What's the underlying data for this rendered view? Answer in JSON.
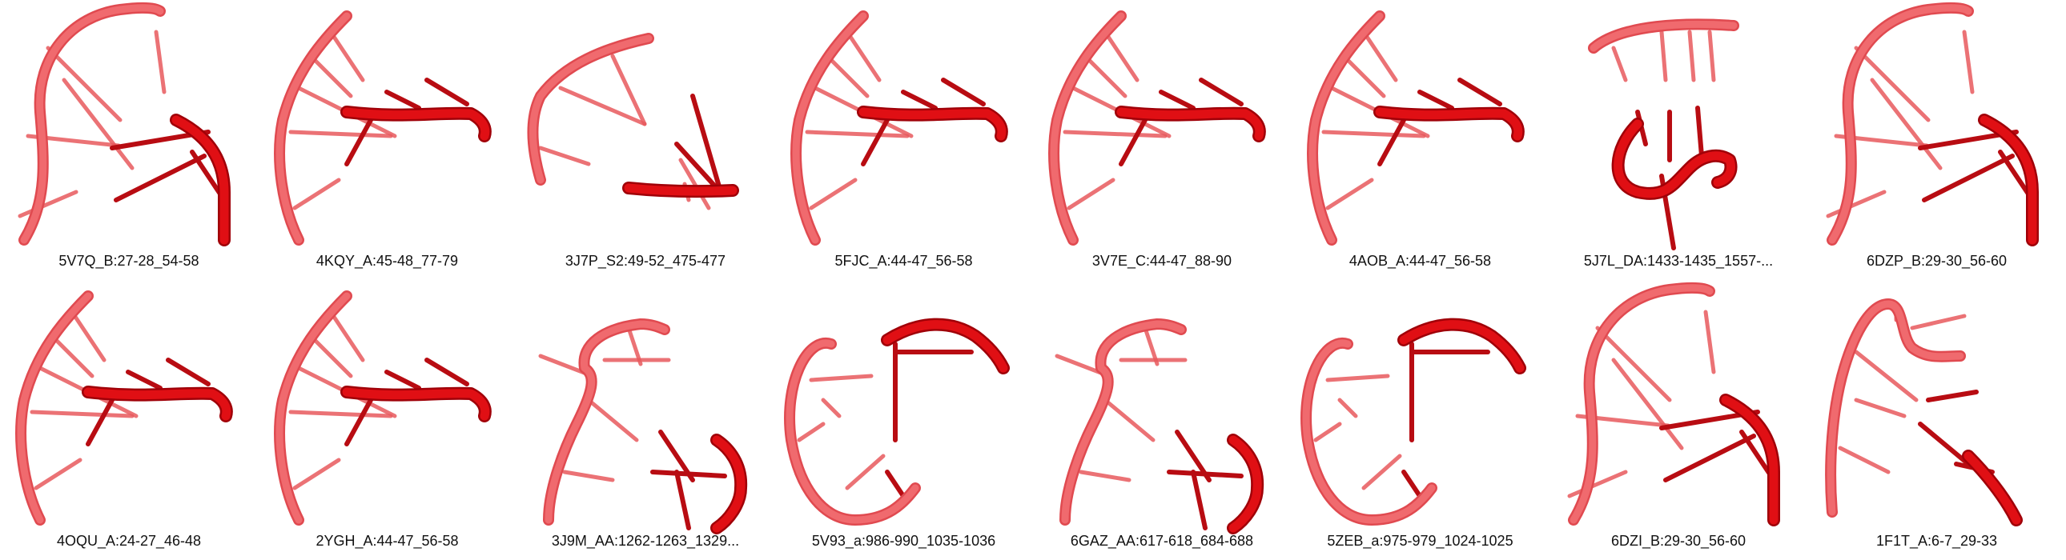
{
  "colors": {
    "light_strand": "#f06a6e",
    "light_strand_edge": "#e04a50",
    "dark_strand": "#e00f14",
    "dark_strand_edge": "#a00008",
    "rung_light": "#e85a5e",
    "rung_dark": "#b80c12"
  },
  "structures": [
    {
      "label": "5V7Q_B:27-28_54-58",
      "shape": "a"
    },
    {
      "label": "4KQY_A:45-48_77-79",
      "shape": "b"
    },
    {
      "label": "3J7P_S2:49-52_475-477",
      "shape": "c"
    },
    {
      "label": "5FJC_A:44-47_56-58",
      "shape": "b"
    },
    {
      "label": "3V7E_C:44-47_88-90",
      "shape": "b"
    },
    {
      "label": "4AOB_A:44-47_56-58",
      "shape": "b"
    },
    {
      "label": "5J7L_DA:1433-1435_1557-...",
      "shape": "d"
    },
    {
      "label": "6DZP_B:29-30_56-60",
      "shape": "a"
    },
    {
      "label": "4OQU_A:24-27_46-48",
      "shape": "b"
    },
    {
      "label": "2YGH_A:44-47_56-58",
      "shape": "b"
    },
    {
      "label": "3J9M_AA:1262-1263_1329...",
      "shape": "e"
    },
    {
      "label": "5V93_a:986-990_1035-1036",
      "shape": "f"
    },
    {
      "label": "6GAZ_AA:617-618_684-688",
      "shape": "e"
    },
    {
      "label": "5ZEB_a:975-979_1024-1025",
      "shape": "f"
    },
    {
      "label": "6DZI_B:29-30_56-60",
      "shape": "a"
    },
    {
      "label": "1F1T_A:6-7_29-33",
      "shape": "g"
    }
  ]
}
